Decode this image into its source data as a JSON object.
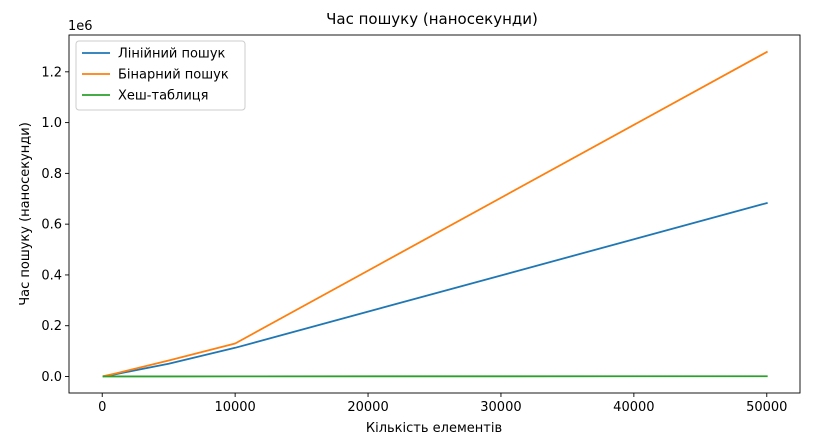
{
  "chart_data": {
    "type": "line",
    "title": "Час пошуку (наносекунди)",
    "xlabel": "Кількість елементів",
    "ylabel": "Час пошуку (наносекунди)",
    "y_offset_text": "1e6",
    "xlim": [
      -2500,
      52500
    ],
    "ylim": [
      -65000,
      1345000
    ],
    "x_ticks": [
      0,
      10000,
      20000,
      30000,
      40000,
      50000
    ],
    "x_tick_labels": [
      "0",
      "10000",
      "20000",
      "30000",
      "40000",
      "50000"
    ],
    "y_ticks": [
      0,
      200000,
      400000,
      600000,
      800000,
      1000000,
      1200000
    ],
    "y_tick_labels": [
      "0.0",
      "0.2",
      "0.4",
      "0.6",
      "0.8",
      "1.0",
      "1.2"
    ],
    "grid": false,
    "legend_position": "top-left",
    "series": [
      {
        "name": "Лінійний пошук",
        "color": "#1f77b4",
        "x": [
          100,
          1000,
          5000,
          10000,
          50000
        ],
        "values": [
          1000,
          9000,
          50000,
          113000,
          683000
        ]
      },
      {
        "name": "Бінарний пошук",
        "color": "#ff7f0e",
        "x": [
          100,
          1000,
          5000,
          10000,
          50000
        ],
        "values": [
          1500,
          12000,
          63000,
          130000,
          1278000
        ]
      },
      {
        "name": "Хеш-таблиця",
        "color": "#2ca02c",
        "x": [
          100,
          1000,
          5000,
          10000,
          50000
        ],
        "values": [
          100,
          200,
          300,
          500,
          1000
        ]
      }
    ]
  }
}
